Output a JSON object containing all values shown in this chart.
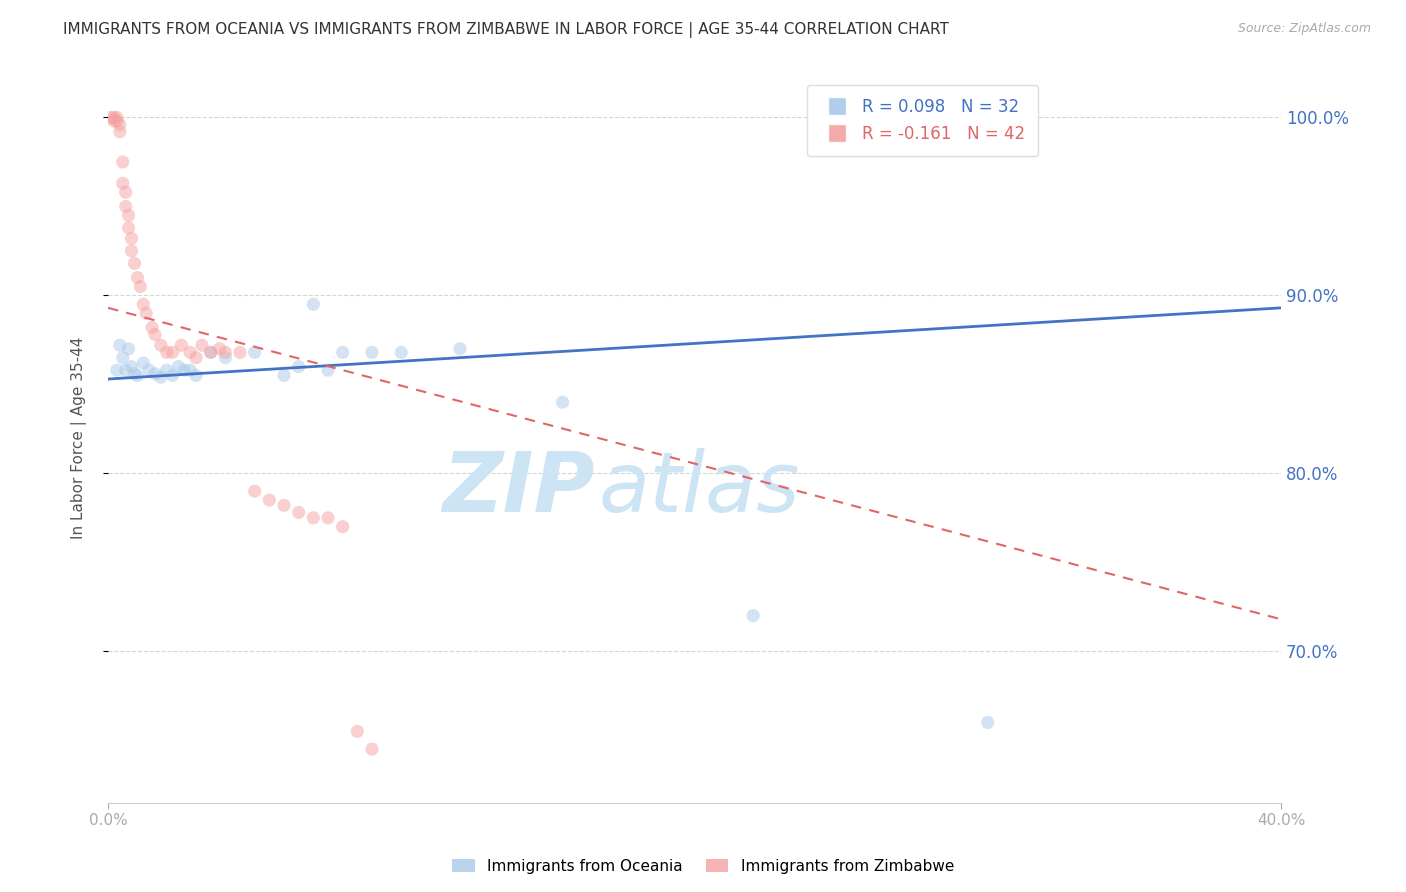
{
  "title": "IMMIGRANTS FROM OCEANIA VS IMMIGRANTS FROM ZIMBABWE IN LABOR FORCE | AGE 35-44 CORRELATION CHART",
  "source": "Source: ZipAtlas.com",
  "ylabel": "In Labor Force | Age 35-44",
  "xlim": [
    0.0,
    0.4
  ],
  "ylim": [
    0.615,
    1.025
  ],
  "yticks": [
    0.7,
    0.8,
    0.9,
    1.0
  ],
  "xticks": [
    0.0,
    0.4
  ],
  "xtick_labels": [
    "0.0%",
    "40.0%"
  ],
  "ytick_labels": [
    "70.0%",
    "80.0%",
    "90.0%",
    "100.0%"
  ],
  "right_ytick_color": "#4472c4",
  "legend_R_oceania": "R = 0.098",
  "legend_N_oceania": "N = 32",
  "legend_R_zimbabwe": "R = -0.161",
  "legend_N_zimbabwe": "N = 42",
  "oceania_color": "#a8c8e8",
  "zimbabwe_color": "#f4a0a0",
  "oceania_line_color": "#4472c4",
  "zimbabwe_line_color": "#e06666",
  "background_color": "#ffffff",
  "watermark_zip": "ZIP",
  "watermark_atlas": "atlas",
  "watermark_color": "#cde4f5",
  "oceania_scatter_x": [
    0.003,
    0.004,
    0.005,
    0.006,
    0.007,
    0.008,
    0.009,
    0.01,
    0.012,
    0.014,
    0.016,
    0.018,
    0.02,
    0.022,
    0.024,
    0.026,
    0.028,
    0.03,
    0.035,
    0.04,
    0.05,
    0.06,
    0.065,
    0.07,
    0.075,
    0.08,
    0.09,
    0.1,
    0.12,
    0.155,
    0.22,
    0.3
  ],
  "oceania_scatter_y": [
    0.858,
    0.872,
    0.865,
    0.858,
    0.87,
    0.86,
    0.856,
    0.855,
    0.862,
    0.858,
    0.856,
    0.854,
    0.858,
    0.855,
    0.86,
    0.858,
    0.858,
    0.855,
    0.868,
    0.865,
    0.868,
    0.855,
    0.86,
    0.895,
    0.858,
    0.868,
    0.868,
    0.868,
    0.87,
    0.84,
    0.72,
    0.66
  ],
  "zimbabwe_scatter_x": [
    0.001,
    0.002,
    0.002,
    0.003,
    0.003,
    0.004,
    0.004,
    0.005,
    0.005,
    0.006,
    0.006,
    0.007,
    0.007,
    0.008,
    0.008,
    0.009,
    0.01,
    0.011,
    0.012,
    0.013,
    0.015,
    0.016,
    0.018,
    0.02,
    0.022,
    0.025,
    0.028,
    0.03,
    0.032,
    0.035,
    0.038,
    0.04,
    0.045,
    0.05,
    0.055,
    0.06,
    0.065,
    0.07,
    0.075,
    0.08,
    0.085,
    0.09
  ],
  "zimbabwe_scatter_y": [
    1.0,
    1.0,
    0.998,
    1.0,
    0.998,
    0.996,
    0.992,
    0.975,
    0.963,
    0.958,
    0.95,
    0.945,
    0.938,
    0.932,
    0.925,
    0.918,
    0.91,
    0.905,
    0.895,
    0.89,
    0.882,
    0.878,
    0.872,
    0.868,
    0.868,
    0.872,
    0.868,
    0.865,
    0.872,
    0.868,
    0.87,
    0.868,
    0.868,
    0.79,
    0.785,
    0.782,
    0.778,
    0.775,
    0.775,
    0.77,
    0.655,
    0.645
  ],
  "oceania_trendline_x": [
    0.0,
    0.4
  ],
  "oceania_trendline_y": [
    0.853,
    0.893
  ],
  "zimbabwe_trendline_x": [
    0.0,
    0.4
  ],
  "zimbabwe_trendline_y": [
    0.893,
    0.718
  ],
  "title_fontsize": 11,
  "source_fontsize": 9,
  "axis_label_fontsize": 11,
  "tick_fontsize": 11,
  "legend_fontsize": 12,
  "marker_size": 90,
  "marker_alpha": 0.5,
  "grid_color": "#cccccc",
  "grid_linestyle": "--",
  "grid_alpha": 0.8,
  "legend_R_color_oceania": "#4472c4",
  "legend_R_color_zimbabwe": "#e06666"
}
